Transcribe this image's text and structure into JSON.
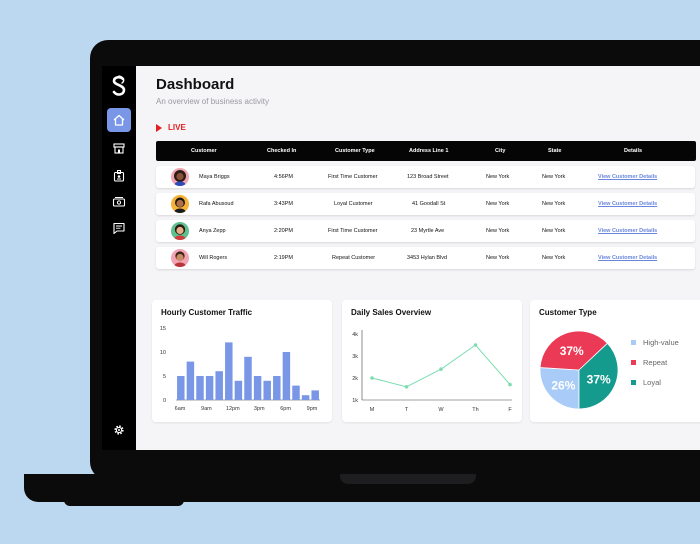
{
  "header": {
    "title": "Dashboard",
    "subtitle": "An overview of business activity"
  },
  "live_label": "LIVE",
  "table": {
    "columns": [
      "Customer",
      "Checked In",
      "Customer Type",
      "Address Line 1",
      "City",
      "State",
      "Details"
    ],
    "rows": [
      {
        "name": "Maya Briggs",
        "checked_in": "4:56PM",
        "type": "First Time Customer",
        "address": "123 Broad Street",
        "city": "New York",
        "state": "New York",
        "details": "View Customer Details"
      },
      {
        "name": "Rafa Abusoud",
        "checked_in": "3:43PM",
        "type": "Loyal Customer",
        "address": "41 Goodall St",
        "city": "New York",
        "state": "New York",
        "details": "View Customer Details"
      },
      {
        "name": "Anya Zepp",
        "checked_in": "2:20PM",
        "type": "First Time Customer",
        "address": "23 Myrtle Ave",
        "city": "New York",
        "state": "New York",
        "details": "View Customer Details"
      },
      {
        "name": "Will Rogers",
        "checked_in": "2:19PM",
        "type": "Repeat Customer",
        "address": "3453 Hylan Blvd",
        "city": "New York",
        "state": "New York",
        "details": "View Customer Details"
      }
    ]
  },
  "colors": {
    "accent": "#7a96e6",
    "live": "#e02020",
    "line": "#7ddcb0",
    "high_value": "#a8cbf7",
    "repeat": "#ea3a56",
    "loyal": "#159b8e"
  },
  "icons": {
    "logo": "s-logo-icon",
    "nav": [
      "home-icon",
      "store-icon",
      "id-badge-icon",
      "cash-icon",
      "message-icon"
    ],
    "settings": "gear-icon"
  },
  "chart_data": [
    {
      "type": "bar",
      "title": "Hourly Customer Traffic",
      "x_tick_labels": [
        "6am",
        "9am",
        "12pm",
        "3pm",
        "6pm",
        "9pm"
      ],
      "values": [
        5,
        8,
        5,
        5,
        6,
        12,
        4,
        9,
        5,
        4,
        5,
        10,
        3,
        1,
        2
      ],
      "ylim": [
        0,
        15
      ],
      "y_ticks": [
        0,
        5,
        10,
        15
      ]
    },
    {
      "type": "line",
      "title": "Daily Sales Overview",
      "categories": [
        "M",
        "T",
        "W",
        "Th",
        "F"
      ],
      "values": [
        2000,
        1600,
        2400,
        3500,
        1700
      ],
      "ylim": [
        1000,
        4000
      ],
      "y_tick_labels": [
        "1k",
        "2k",
        "3k",
        "4k"
      ]
    },
    {
      "type": "pie",
      "title": "Customer Type",
      "slices": [
        {
          "label": "High-value",
          "value": 26,
          "color": "#a8cbf7"
        },
        {
          "label": "Repeat",
          "value": 37,
          "color": "#ea3a56"
        },
        {
          "label": "Loyal",
          "value": 37,
          "color": "#159b8e"
        }
      ]
    }
  ]
}
